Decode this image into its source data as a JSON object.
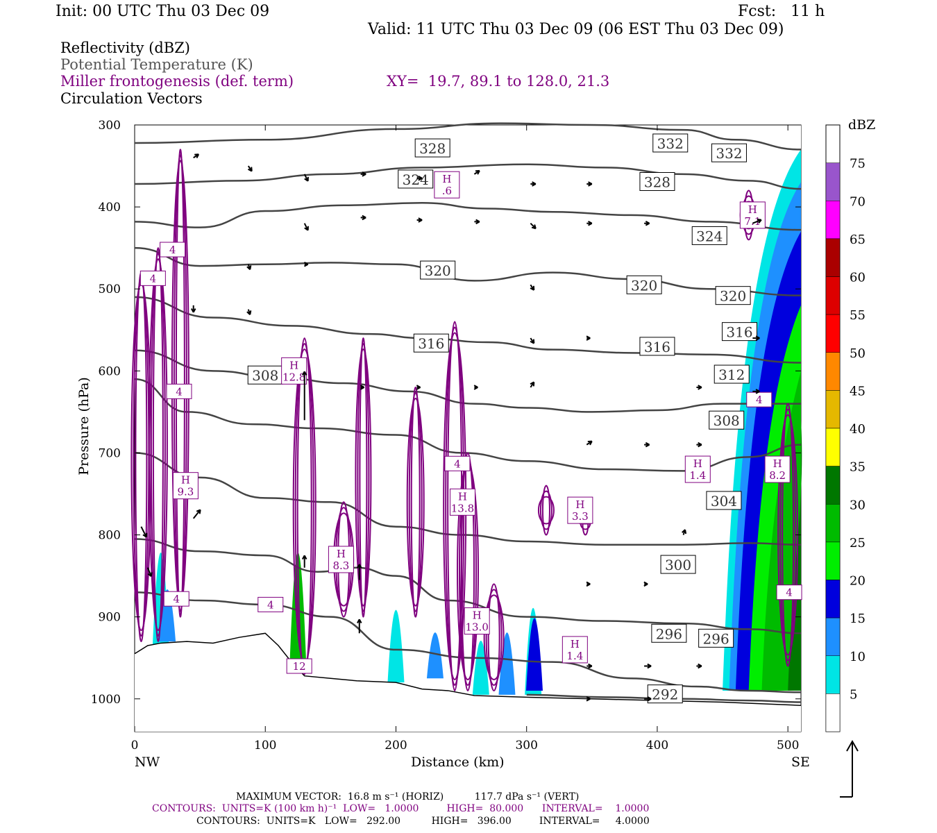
{
  "header": {
    "init": "Init: 00 UTC Thu 03 Dec 09",
    "fcst": "Fcst:   11 h",
    "valid": "Valid: 11 UTC Thu 03 Dec 09 (06 EST Thu 03 Dec 09)"
  },
  "legend": {
    "line1": "Reflectivity (dBZ)",
    "line2": "Potential Temperature (K)",
    "line3": "Miller frontogenesis (def. term)",
    "xy": "XY=  19.7, 89.1 to 128.0, 21.3",
    "line4": "Circulation Vectors"
  },
  "axes": {
    "ylabel": "Pressure (hPa)",
    "xlabel": "Distance (km)",
    "left_end": "NW",
    "right_end": "SE",
    "colorbar_unit": "dBZ"
  },
  "footer": {
    "max_vector": "MAXIMUM VECTOR:  16.8 m s⁻¹ (HORIZ)          117.7 dPa s⁻¹ (VERT)",
    "contours1": "CONTOURS:  UNITS=K (100 km h)⁻¹  LOW=   1.0000         HIGH=  80.000      INTERVAL=    1.0000",
    "contours2": "CONTOURS:  UNITS=K   LOW=   292.00          HIGH=   396.00         INTERVAL=     4.0000"
  },
  "colors": {
    "theta": "#444444",
    "frontogenesis": "#7f007f",
    "vector": "#000000"
  },
  "chart_data": {
    "type": "heatmap",
    "xlim": [
      0,
      510
    ],
    "ylim": [
      1040,
      300
    ],
    "x_ticks": [
      0,
      100,
      200,
      300,
      400,
      500
    ],
    "y_ticks": [
      300,
      400,
      500,
      600,
      700,
      800,
      900,
      1000
    ],
    "colorbar": {
      "levels": [
        5,
        10,
        15,
        20,
        25,
        30,
        35,
        40,
        45,
        50,
        55,
        60,
        65,
        70,
        75
      ],
      "colors": [
        "#ffffff",
        "#00e5e5",
        "#1e90ff",
        "#0000dd",
        "#00ee00",
        "#00bb00",
        "#007700",
        "#ffff00",
        "#e5b800",
        "#ff8800",
        "#ff0000",
        "#dd0000",
        "#aa0000",
        "#ff00ff",
        "#9955cc"
      ]
    },
    "theta_contours": [
      {
        "label": "332",
        "points": [
          [
            0,
            322
          ],
          [
            100,
            318
          ],
          [
            200,
            305
          ],
          [
            280,
            298
          ],
          [
            350,
            300
          ],
          [
            420,
            306
          ],
          [
            460,
            318
          ],
          [
            510,
            330
          ]
        ]
      },
      {
        "label": "328",
        "points": [
          [
            0,
            372
          ],
          [
            80,
            368
          ],
          [
            150,
            360
          ],
          [
            220,
            352
          ],
          [
            300,
            348
          ],
          [
            360,
            352
          ],
          [
            420,
            360
          ],
          [
            470,
            368
          ],
          [
            510,
            378
          ]
        ]
      },
      {
        "label": "324",
        "points": [
          [
            0,
            418
          ],
          [
            50,
            425
          ],
          [
            100,
            405
          ],
          [
            160,
            398
          ],
          [
            220,
            395
          ],
          [
            270,
            402
          ],
          [
            320,
            406
          ],
          [
            380,
            410
          ],
          [
            440,
            418
          ],
          [
            510,
            428
          ]
        ]
      },
      {
        "label": "320",
        "points": [
          [
            0,
            450
          ],
          [
            50,
            472
          ],
          [
            100,
            470
          ],
          [
            150,
            468
          ],
          [
            200,
            470
          ],
          [
            260,
            490
          ],
          [
            320,
            480
          ],
          [
            380,
            488
          ],
          [
            440,
            500
          ],
          [
            510,
            508
          ]
        ]
      },
      {
        "label": "316",
        "points": [
          [
            0,
            510
          ],
          [
            60,
            535
          ],
          [
            120,
            545
          ],
          [
            180,
            555
          ],
          [
            220,
            560
          ],
          [
            270,
            565
          ],
          [
            320,
            574
          ],
          [
            380,
            578
          ],
          [
            440,
            580
          ],
          [
            510,
            590
          ]
        ]
      },
      {
        "label": "312",
        "points": [
          [
            0,
            575
          ],
          [
            60,
            600
          ],
          [
            110,
            608
          ],
          [
            160,
            615
          ],
          [
            210,
            625
          ],
          [
            260,
            640
          ],
          [
            300,
            645
          ],
          [
            350,
            650
          ],
          [
            400,
            648
          ],
          [
            450,
            640
          ],
          [
            510,
            640
          ]
        ]
      },
      {
        "label": "308",
        "points": [
          [
            0,
            610
          ],
          [
            40,
            650
          ],
          [
            90,
            665
          ],
          [
            140,
            670
          ],
          [
            200,
            678
          ],
          [
            250,
            700
          ],
          [
            300,
            710
          ],
          [
            360,
            720
          ],
          [
            420,
            722
          ],
          [
            470,
            705
          ],
          [
            510,
            690
          ]
        ]
      },
      {
        "label": "304",
        "points": [
          [
            0,
            700
          ],
          [
            50,
            730
          ],
          [
            100,
            755
          ],
          [
            150,
            760
          ],
          [
            200,
            790
          ],
          [
            250,
            800
          ],
          [
            300,
            808
          ],
          [
            360,
            812
          ],
          [
            420,
            812
          ],
          [
            470,
            810
          ],
          [
            510,
            812
          ]
        ]
      },
      {
        "label": "300",
        "points": [
          [
            0,
            805
          ],
          [
            50,
            820
          ],
          [
            100,
            825
          ],
          [
            140,
            845
          ],
          [
            170,
            840
          ],
          [
            200,
            850
          ],
          [
            240,
            880
          ],
          [
            300,
            900
          ],
          [
            360,
            905
          ],
          [
            420,
            908
          ],
          [
            470,
            915
          ],
          [
            510,
            920
          ]
        ]
      },
      {
        "label": "296",
        "points": [
          [
            0,
            870
          ],
          [
            50,
            880
          ],
          [
            100,
            885
          ],
          [
            150,
            900
          ],
          [
            200,
            940
          ],
          [
            260,
            950
          ],
          [
            320,
            955
          ],
          [
            380,
            975
          ],
          [
            430,
            985
          ],
          [
            470,
            990
          ],
          [
            510,
            992
          ]
        ]
      },
      {
        "label": "292",
        "points": [
          [
            300,
            995
          ],
          [
            360,
            998
          ],
          [
            420,
            1000
          ],
          [
            470,
            1002
          ],
          [
            510,
            1004
          ]
        ]
      }
    ],
    "theta_labels": [
      {
        "text": "328",
        "x": 228,
        "p": 328
      },
      {
        "text": "332",
        "x": 410,
        "p": 322
      },
      {
        "text": "332",
        "x": 455,
        "p": 334
      },
      {
        "text": "324",
        "x": 215,
        "p": 366
      },
      {
        "text": "328",
        "x": 400,
        "p": 369
      },
      {
        "text": "324",
        "x": 440,
        "p": 435
      },
      {
        "text": "320",
        "x": 232,
        "p": 477
      },
      {
        "text": "320",
        "x": 390,
        "p": 495
      },
      {
        "text": "320",
        "x": 458,
        "p": 508
      },
      {
        "text": "316",
        "x": 227,
        "p": 566
      },
      {
        "text": "316",
        "x": 400,
        "p": 570
      },
      {
        "text": "316",
        "x": 463,
        "p": 552
      },
      {
        "text": "308",
        "x": 100,
        "p": 605
      },
      {
        "text": "312",
        "x": 457,
        "p": 604
      },
      {
        "text": "308",
        "x": 453,
        "p": 660
      },
      {
        "text": "304",
        "x": 451,
        "p": 758
      },
      {
        "text": "300",
        "x": 416,
        "p": 836
      },
      {
        "text": "296",
        "x": 409,
        "p": 920
      },
      {
        "text": "296",
        "x": 445,
        "p": 926
      },
      {
        "text": "292",
        "x": 406,
        "p": 994
      }
    ],
    "frontogenesis_labels": [
      {
        "text": "H\n.6",
        "x": 239,
        "p": 373
      },
      {
        "text": "H\n7.1",
        "x": 473,
        "p": 410
      },
      {
        "text": "4",
        "x": 29,
        "p": 452
      },
      {
        "text": "4",
        "x": 14,
        "p": 487
      },
      {
        "text": "H\n12.8",
        "x": 122,
        "p": 600
      },
      {
        "text": "4",
        "x": 34,
        "p": 625
      },
      {
        "text": "H\n9.3",
        "x": 39,
        "p": 740
      },
      {
        "text": "4",
        "x": 247,
        "p": 713
      },
      {
        "text": "H\n13.8",
        "x": 251,
        "p": 760
      },
      {
        "text": "H\n3.3",
        "x": 341,
        "p": 770
      },
      {
        "text": "H\n1.4",
        "x": 431,
        "p": 720
      },
      {
        "text": "H\n8.2",
        "x": 492,
        "p": 720
      },
      {
        "text": "4",
        "x": 478,
        "p": 635
      },
      {
        "text": "H\n8.3",
        "x": 158,
        "p": 830
      },
      {
        "text": "4",
        "x": 32,
        "p": 878
      },
      {
        "text": "4",
        "x": 104,
        "p": 885
      },
      {
        "text": "H\n13.0",
        "x": 262,
        "p": 905
      },
      {
        "text": "H\n1.4",
        "x": 337,
        "p": 940
      },
      {
        "text": "4",
        "x": 501,
        "p": 870
      },
      {
        "text": "12",
        "x": 126,
        "p": 960
      }
    ],
    "terrain": [
      [
        0,
        945
      ],
      [
        10,
        935
      ],
      [
        20,
        932
      ],
      [
        40,
        930
      ],
      [
        60,
        932
      ],
      [
        80,
        925
      ],
      [
        100,
        920
      ],
      [
        110,
        935
      ],
      [
        120,
        955
      ],
      [
        130,
        972
      ],
      [
        150,
        975
      ],
      [
        170,
        978
      ],
      [
        200,
        980
      ],
      [
        220,
        988
      ],
      [
        240,
        990
      ],
      [
        260,
        996
      ],
      [
        300,
        998
      ],
      [
        350,
        1000
      ],
      [
        400,
        1002
      ],
      [
        450,
        1004
      ],
      [
        510,
        1008
      ]
    ],
    "reflectivity_bands": [
      {
        "dbz": 5,
        "x": [
          445,
          510
        ],
        "p_top": [
          990,
          300
        ]
      },
      {
        "dbz": 10,
        "x": [
          450,
          510
        ],
        "p_top": [
          990,
          330
        ]
      },
      {
        "dbz": 15,
        "x": [
          455,
          510
        ],
        "p_top": [
          990,
          370
        ]
      },
      {
        "dbz": 20,
        "x": [
          460,
          510
        ],
        "p_top": [
          990,
          430
        ]
      },
      {
        "dbz": 25,
        "x": [
          470,
          510
        ],
        "p_top": [
          990,
          520
        ]
      },
      {
        "dbz": 30,
        "x": [
          480,
          510
        ],
        "p_top": [
          990,
          600
        ]
      },
      {
        "dbz": 35,
        "x": [
          500,
          510
        ],
        "p_top": [
          990,
          660
        ]
      }
    ],
    "vectors": [
      {
        "x": 45,
        "p": 340,
        "u": 0.3,
        "w": -0.2
      },
      {
        "x": 87,
        "p": 350,
        "u": 0.2,
        "w": 0.3
      },
      {
        "x": 130,
        "p": 360,
        "u": 0.2,
        "w": 0.4
      },
      {
        "x": 173,
        "p": 360,
        "u": 0.3,
        "w": 0
      },
      {
        "x": 216,
        "p": 365,
        "u": 0.3,
        "w": 0
      },
      {
        "x": 260,
        "p": 360,
        "u": 0.3,
        "w": -0.2
      },
      {
        "x": 303,
        "p": 372,
        "u": 0.3,
        "w": 0
      },
      {
        "x": 346,
        "p": 372,
        "u": 0.3,
        "w": 0
      },
      {
        "x": 130,
        "p": 420,
        "u": 0.2,
        "w": 0.4
      },
      {
        "x": 173,
        "p": 413,
        "u": 0.3,
        "w": 0
      },
      {
        "x": 216,
        "p": 416,
        "u": 0.3,
        "w": 0
      },
      {
        "x": 260,
        "p": 418,
        "u": 0.3,
        "w": 0
      },
      {
        "x": 303,
        "p": 420,
        "u": 0.3,
        "w": 0.3
      },
      {
        "x": 346,
        "p": 420,
        "u": 0.3,
        "w": 0
      },
      {
        "x": 390,
        "p": 420,
        "u": 0.3,
        "w": 0
      },
      {
        "x": 87,
        "p": 470,
        "u": 0.1,
        "w": 0.3
      },
      {
        "x": 130,
        "p": 470,
        "u": 0.2,
        "w": 0
      },
      {
        "x": 303,
        "p": 495,
        "u": 0.2,
        "w": 0.3
      },
      {
        "x": 87,
        "p": 525,
        "u": 0.1,
        "w": 0.3
      },
      {
        "x": 45,
        "p": 520,
        "u": 0,
        "w": 0.4
      },
      {
        "x": 346,
        "p": 560,
        "u": 0.2,
        "w": 0
      },
      {
        "x": 303,
        "p": 560,
        "u": 0.2,
        "w": 0.3
      },
      {
        "x": 130,
        "p": 660,
        "u": 0,
        "w": -2.8
      },
      {
        "x": 172,
        "p": 855,
        "u": 0,
        "w": -0.9
      },
      {
        "x": 172,
        "p": 920,
        "u": 0,
        "w": -0.8
      },
      {
        "x": 130,
        "p": 840,
        "u": 0,
        "w": -0.7
      },
      {
        "x": 45,
        "p": 780,
        "u": 0.4,
        "w": -0.5
      },
      {
        "x": 5,
        "p": 790,
        "u": 0.3,
        "w": 0.6
      },
      {
        "x": 10,
        "p": 840,
        "u": 0.2,
        "w": 0.5
      },
      {
        "x": 390,
        "p": 690,
        "u": 0.3,
        "w": 0
      },
      {
        "x": 346,
        "p": 690,
        "u": 0.3,
        "w": -0.2
      },
      {
        "x": 430,
        "p": 690,
        "u": 0.3,
        "w": 0
      },
      {
        "x": 420,
        "p": 800,
        "u": 0.1,
        "w": -0.3
      },
      {
        "x": 390,
        "p": 860,
        "u": 0.2,
        "w": 0
      },
      {
        "x": 346,
        "p": 860,
        "u": 0.2,
        "w": 0
      },
      {
        "x": 390,
        "p": 960,
        "u": 0.4,
        "w": 0
      },
      {
        "x": 346,
        "p": 960,
        "u": 0.3,
        "w": 0
      },
      {
        "x": 430,
        "p": 960,
        "u": 0.3,
        "w": 0
      },
      {
        "x": 390,
        "p": 1000,
        "u": 0.4,
        "w": 0
      },
      {
        "x": 346,
        "p": 1000,
        "u": 0.2,
        "w": 0
      },
      {
        "x": 303,
        "p": 620,
        "u": 0.2,
        "w": -0.3
      },
      {
        "x": 260,
        "p": 620,
        "u": 0.2,
        "w": 0
      },
      {
        "x": 216,
        "p": 620,
        "u": 0.2,
        "w": 0
      },
      {
        "x": 173,
        "p": 620,
        "u": 0.2,
        "w": 0
      },
      {
        "x": 430,
        "p": 620,
        "u": 0.3,
        "w": 0
      },
      {
        "x": 473,
        "p": 625,
        "u": 0.4,
        "w": 0
      },
      {
        "x": 473,
        "p": 560,
        "u": 0.4,
        "w": 0
      },
      {
        "x": 473,
        "p": 420,
        "u": 0.5,
        "w": -0.2
      }
    ]
  }
}
